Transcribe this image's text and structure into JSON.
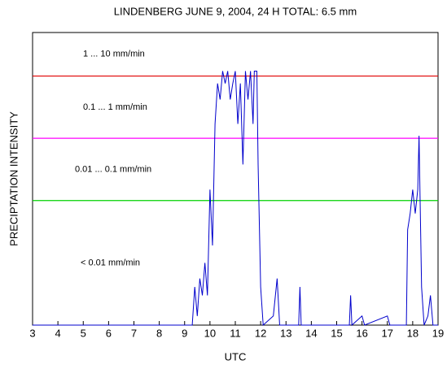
{
  "chart_data": {
    "type": "line",
    "title": "LINDENBERG JUNE 9, 2004, 24 H TOTAL: 6.5 mm",
    "x_label": "UTC",
    "y_label": "PRECIPTATION INTENSITY",
    "log_y": true,
    "xlim": [
      3,
      19
    ],
    "xticks": [
      3,
      4,
      5,
      6,
      7,
      8,
      9,
      10,
      11,
      12,
      13,
      14,
      15,
      16,
      17,
      18,
      19
    ],
    "ylim": [
      0.0001,
      5
    ],
    "thresholds": [
      {
        "value": 1,
        "color": "#e00000"
      },
      {
        "value": 0.1,
        "color": "#ff00ff"
      },
      {
        "value": 0.01,
        "color": "#00d000"
      }
    ],
    "bands": [
      {
        "label": "1  ...  10 mm/min",
        "color": "#e00000"
      },
      {
        "label": "0.1  ...  1 mm/min",
        "color": "#ff00ff"
      },
      {
        "label": "0.01  ...  0.1 mm/min",
        "color": "#00d000"
      },
      {
        "label": "< 0.01 mm/min",
        "color": "#000000"
      }
    ],
    "series": [
      {
        "color": "#0000cc",
        "x": [
          3,
          9.3,
          9.4,
          9.5,
          9.6,
          9.7,
          9.8,
          9.9,
          10.0,
          10.1,
          10.2,
          10.3,
          10.4,
          10.5,
          10.6,
          10.7,
          10.8,
          10.9,
          11.0,
          11.1,
          11.2,
          11.3,
          11.4,
          11.5,
          11.6,
          11.7,
          11.75,
          11.85,
          11.9,
          12.0,
          12.1,
          12.5,
          12.65,
          12.75,
          13.5,
          13.55,
          13.6,
          15.5,
          15.55,
          15.6,
          16.0,
          16.1,
          17.0,
          17.1,
          17.75,
          17.8,
          17.9,
          18.0,
          18.1,
          18.2,
          18.25,
          18.35,
          18.45,
          18.6,
          18.7,
          18.8,
          19
        ],
        "values": [
          0.0001,
          0.0001,
          0.00041,
          0.00014,
          0.00056,
          0.0003,
          0.001,
          0.0003,
          0.015,
          0.0019,
          0.17,
          0.76,
          0.42,
          1.2,
          0.76,
          1.2,
          0.42,
          0.76,
          1.2,
          0.17,
          0.76,
          0.038,
          1.2,
          0.42,
          1.2,
          0.17,
          1.2,
          1.2,
          0.038,
          0.00041,
          0.0001,
          0.00014,
          0.00056,
          0.0001,
          0.0001,
          0.00041,
          0.0001,
          0.0001,
          0.0003,
          0.0001,
          0.00014,
          0.0001,
          0.00014,
          0.0001,
          0.0001,
          0.0034,
          0.0062,
          0.015,
          0.0062,
          0.015,
          0.11,
          0.00041,
          0.0001,
          0.00014,
          0.0003,
          0.0001,
          0.0001
        ]
      }
    ]
  }
}
